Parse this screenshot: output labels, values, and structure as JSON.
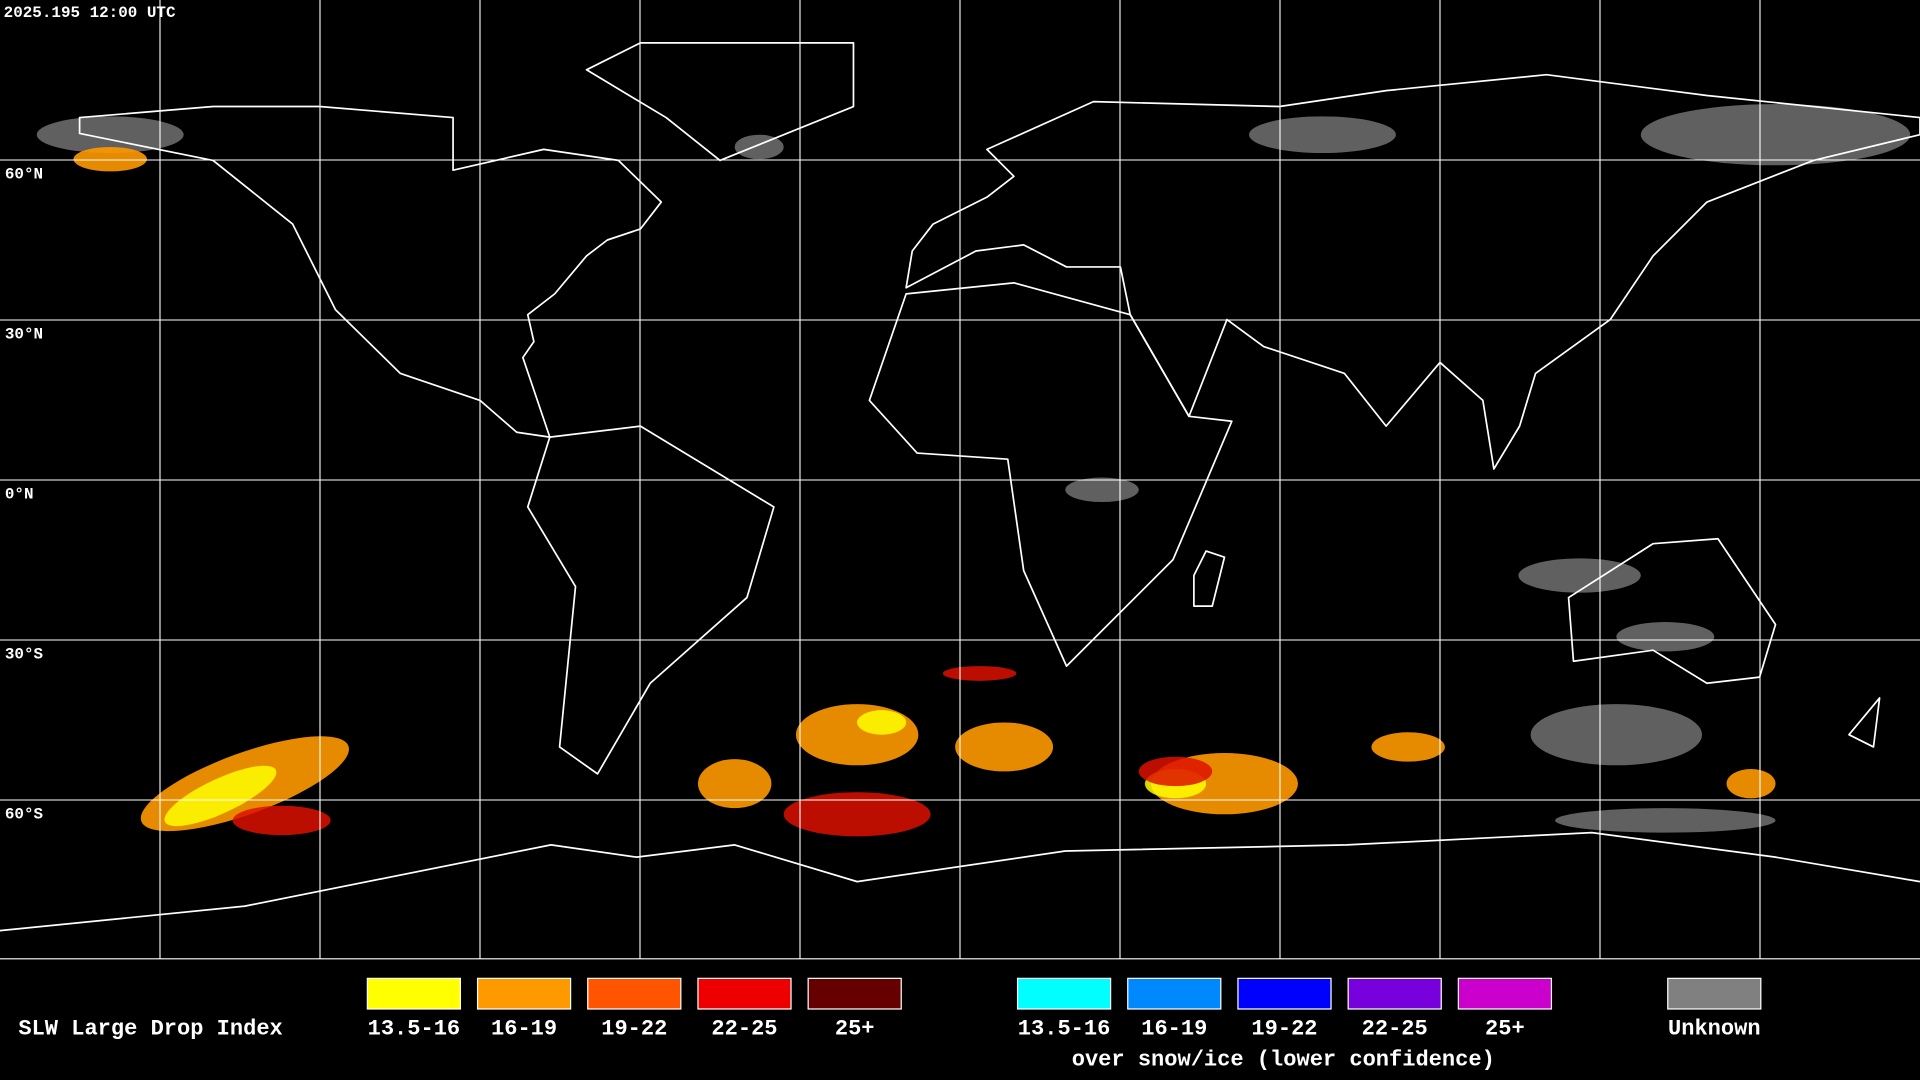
{
  "header": {
    "timestamp": "2025.195 12:00 UTC"
  },
  "latitude_labels": [
    "60°N",
    "30°N",
    "0°N",
    "30°S",
    "60°S"
  ],
  "legend": {
    "title": "SLW Large Drop Index",
    "items": [
      {
        "label": "13.5-16",
        "color": "#ffff00"
      },
      {
        "label": "16-19",
        "color": "#ff9900"
      },
      {
        "label": "19-22",
        "color": "#ff5500"
      },
      {
        "label": "22-25",
        "color": "#ee0000"
      },
      {
        "label": "25+",
        "color": "#660000"
      }
    ],
    "snow_ice_items": [
      {
        "label": "13.5-16",
        "color": "#00ffff"
      },
      {
        "label": "16-19",
        "color": "#0088ff"
      },
      {
        "label": "19-22",
        "color": "#0000ff"
      },
      {
        "label": "22-25",
        "color": "#7700dd"
      },
      {
        "label": "25+",
        "color": "#cc00cc"
      }
    ],
    "snow_ice_caption": "over snow/ice (lower confidence)",
    "unknown": {
      "label": "Unknown",
      "color": "#808080"
    }
  }
}
